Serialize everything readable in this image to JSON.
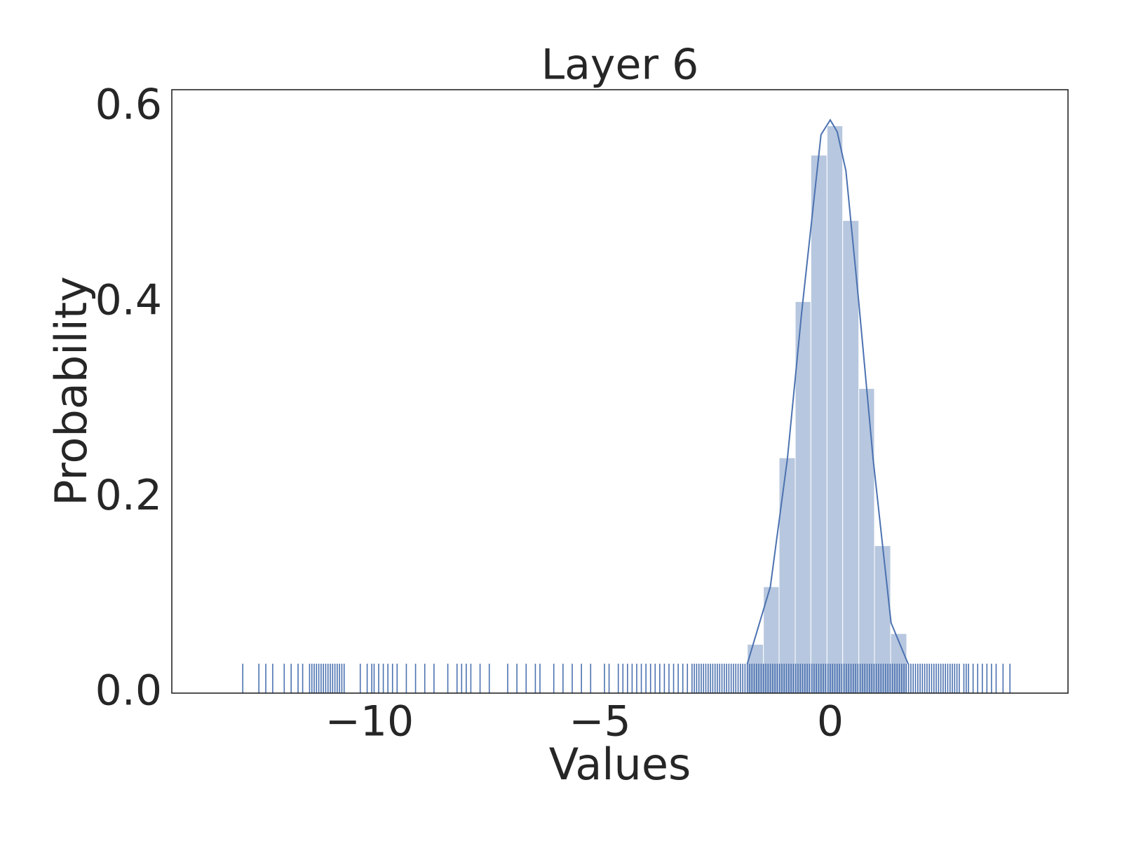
{
  "chart_data": {
    "type": "histogram",
    "title": "Layer 6",
    "xlabel": "Values",
    "ylabel": "Probability",
    "color": "#4c72b0",
    "bins": [
      -1.8,
      -1.45,
      -1.11,
      -0.76,
      -0.42,
      -0.07,
      0.27,
      0.62,
      0.96,
      1.31,
      1.66
    ],
    "values": [
      0.05,
      0.109,
      0.241,
      0.401,
      0.551,
      0.581,
      0.484,
      0.312,
      0.151,
      0.061
    ],
    "kde": {
      "x": [
        -1.8,
        -1.3,
        -0.93,
        -0.62,
        -0.2,
        0,
        0.15,
        0.34,
        0.62,
        0.93,
        1.32,
        1.69
      ],
      "y": [
        0.03,
        0.109,
        0.24,
        0.39,
        0.572,
        0.587,
        0.575,
        0.535,
        0.4,
        0.24,
        0.072,
        0.03
      ]
    },
    "rug": [
      -12.75,
      -12.4,
      -12.25,
      -12.1,
      -11.85,
      -11.7,
      -11.55,
      -11.45,
      -11.3,
      -11.25,
      -11.2,
      -11.15,
      -11.1,
      -11.05,
      -11.0,
      -10.95,
      -10.9,
      -10.85,
      -10.8,
      -10.75,
      -10.7,
      -10.65,
      -10.6,
      -10.55,
      -10.2,
      -10.05,
      -9.95,
      -9.9,
      -9.8,
      -9.7,
      -9.6,
      -9.5,
      -9.4,
      -9.2,
      -9.0,
      -8.8,
      -8.6,
      -8.3,
      -8.1,
      -8.0,
      -7.9,
      -7.8,
      -7.6,
      -7.4,
      -7.0,
      -6.8,
      -6.6,
      -6.4,
      -6.3,
      -6.0,
      -5.8,
      -5.6,
      -5.4,
      -5.2,
      -4.9,
      -4.8,
      -4.6,
      -4.5,
      -4.4,
      -4.3,
      -4.2,
      -4.1,
      -4.0,
      -3.9,
      -3.8,
      -3.7,
      -3.6,
      -3.5,
      -3.4,
      -3.3,
      -3.2,
      -3.1,
      -3.0,
      -2.95,
      -2.9,
      -2.85,
      -2.8,
      -2.75,
      -2.7,
      -2.65,
      -2.6,
      -2.55,
      -2.5,
      -2.45,
      -2.4,
      -2.35,
      -2.3,
      -2.25,
      -2.2,
      -2.15,
      -2.1,
      -2.05,
      -2.0,
      -1.95,
      -1.9,
      -1.85,
      -1.8,
      -1.75,
      -1.7,
      -1.65,
      -1.6,
      -1.55,
      -1.5,
      -1.45,
      -1.4,
      -1.35,
      -1.3,
      -1.25,
      -1.2,
      -1.15,
      -1.1,
      -1.05,
      -1.0,
      -0.95,
      -0.9,
      -0.85,
      -0.8,
      -0.75,
      -0.7,
      -0.65,
      -0.6,
      -0.55,
      -0.5,
      -0.45,
      -0.4,
      -0.35,
      -0.3,
      -0.25,
      -0.2,
      -0.15,
      -0.1,
      -0.05,
      0,
      0.05,
      0.1,
      0.15,
      0.2,
      0.25,
      0.3,
      0.35,
      0.4,
      0.45,
      0.5,
      0.55,
      0.6,
      0.65,
      0.7,
      0.75,
      0.8,
      0.85,
      0.9,
      0.95,
      1.0,
      1.05,
      1.1,
      1.15,
      1.2,
      1.25,
      1.3,
      1.35,
      1.4,
      1.45,
      1.5,
      1.55,
      1.6,
      1.65,
      1.7,
      1.75,
      1.8,
      1.85,
      1.9,
      1.95,
      2.0,
      2.05,
      2.1,
      2.15,
      2.2,
      2.25,
      2.3,
      2.35,
      2.4,
      2.45,
      2.5,
      2.55,
      2.6,
      2.65,
      2.7,
      2.75,
      2.8,
      2.9,
      2.95,
      3.0,
      3.1,
      3.2,
      3.3,
      3.4,
      3.5,
      3.6,
      3.75,
      3.9
    ],
    "xlim": [
      -14.29,
      5.16
    ],
    "ylim": [
      0,
      0.618
    ],
    "xticks": [
      {
        "value": -10,
        "label": "−10"
      },
      {
        "value": -5,
        "label": "−5"
      },
      0
    ],
    "yticks": [
      {
        "value": 0,
        "label": "0.0"
      },
      0.2,
      0.4,
      0.6
    ],
    "grid": false
  }
}
